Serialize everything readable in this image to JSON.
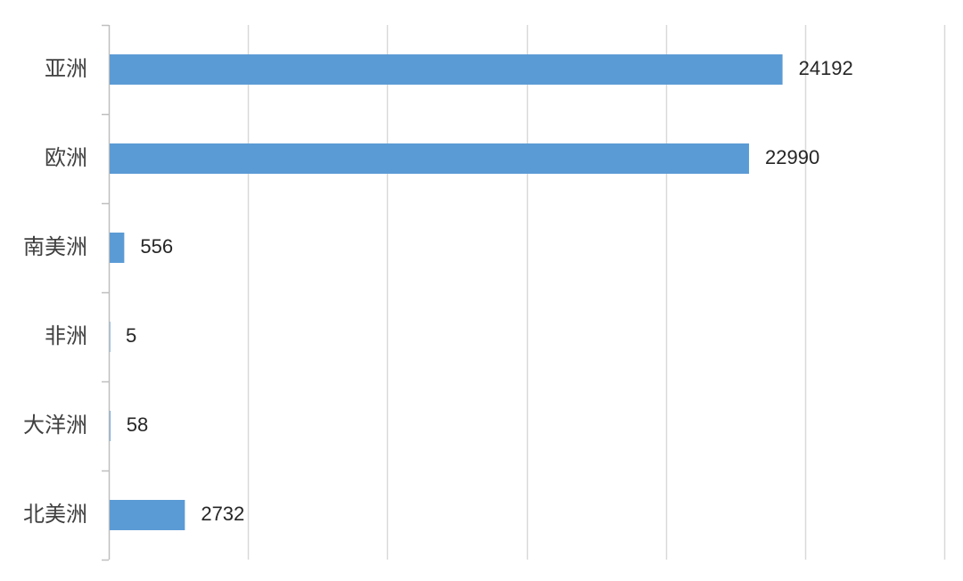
{
  "chart_data": {
    "type": "bar",
    "orientation": "horizontal",
    "title": "",
    "xlabel": "",
    "ylabel": "",
    "categories": [
      "亚洲",
      "欧洲",
      "南美洲",
      "非洲",
      "大洋洲",
      "北美洲"
    ],
    "values": [
      24192,
      22990,
      556,
      5,
      58,
      2732
    ],
    "data_labels": [
      "24192",
      "22990",
      "556",
      "5",
      "58",
      "2732"
    ],
    "xlim": [
      0,
      30000
    ],
    "x_tick_step": 5000,
    "x_tick_labels_shown": false,
    "grid": "vertical",
    "legend": "none",
    "bar_color": "#5b9bd5",
    "gridline_color": "#d9d9d9",
    "axis_color": "#bfbfbf",
    "label_color": "#404040",
    "data_label_color": "#262626"
  }
}
